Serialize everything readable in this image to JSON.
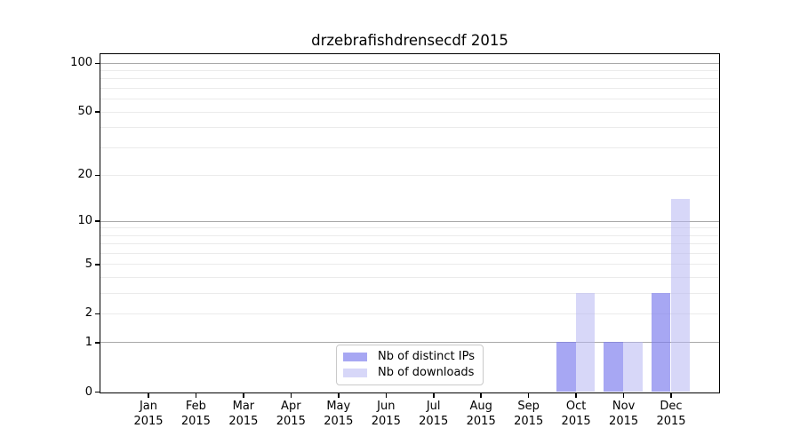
{
  "chart_data": {
    "type": "bar",
    "title": "drzebrafishdrensecdf 2015",
    "categories": [
      "Jan",
      "Feb",
      "Mar",
      "Apr",
      "May",
      "Jun",
      "Jul",
      "Aug",
      "Sep",
      "Oct",
      "Nov",
      "Dec"
    ],
    "x_axis": {
      "year": "2015"
    },
    "series": [
      {
        "name": "Nb of distinct IPs",
        "color": "#7d7dee",
        "alpha": 0.68,
        "values": [
          0,
          0,
          0,
          0,
          0,
          0,
          0,
          0,
          0,
          1,
          1,
          3
        ]
      },
      {
        "name": "Nb of downloads",
        "color": "#b7b7f2",
        "alpha": 0.55,
        "values": [
          0,
          0,
          0,
          0,
          0,
          0,
          0,
          0,
          0,
          3,
          1,
          14
        ]
      }
    ],
    "y_axis": {
      "scale": "log10(value+1)",
      "tick_labels": [
        0,
        1,
        2,
        5,
        10,
        20,
        50,
        100
      ],
      "major_gridlines": [
        1,
        10,
        100
      ],
      "minor_gridlines": [
        2,
        3,
        4,
        5,
        6,
        7,
        8,
        9,
        20,
        30,
        40,
        50,
        60,
        70,
        80,
        90
      ],
      "max_value": 113
    },
    "legend": {
      "position": "bottom-center"
    },
    "grid": true,
    "colors": {
      "major_grid": "#a9a9a9",
      "minor_grid": "#ebebeb",
      "axis": "#000000",
      "background": "#ffffff"
    }
  }
}
